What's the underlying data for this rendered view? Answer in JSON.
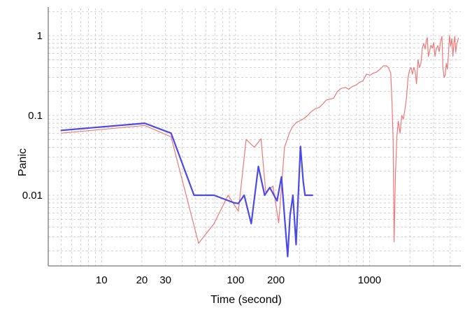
{
  "chart_data": {
    "type": "line",
    "title": "",
    "xlabel": "Time (second)",
    "ylabel": "Panic",
    "xscale": "log",
    "yscale": "log",
    "xlim": [
      4,
      4800
    ],
    "ylim": [
      0.0013,
      2.2
    ],
    "grid": true,
    "legend": "none",
    "x_ticks": [
      {
        "value": 10,
        "label": "10"
      },
      {
        "value": 20,
        "label": "20"
      },
      {
        "value": 30,
        "label": "30"
      },
      {
        "value": 100,
        "label": "100"
      },
      {
        "value": 200,
        "label": "200"
      },
      {
        "value": 1000,
        "label": "1000"
      }
    ],
    "y_ticks": [
      {
        "value": 0.01,
        "label": "0.01"
      },
      {
        "value": 0.1,
        "label": "0.1"
      },
      {
        "value": 1,
        "label": "1"
      }
    ],
    "series": [
      {
        "color": "#f07878",
        "width": 1.2,
        "points": [
          [
            5,
            0.06
          ],
          [
            21,
            0.075
          ],
          [
            33,
            0.054
          ],
          [
            53,
            0.0025
          ],
          [
            69,
            0.0044
          ],
          [
            88,
            0.01
          ],
          [
            105,
            0.0063
          ],
          [
            120,
            0.05
          ],
          [
            138,
            0.04
          ],
          [
            155,
            0.051
          ],
          [
            168,
            0.011
          ],
          [
            190,
            0.013
          ],
          [
            210,
            0.0045
          ],
          [
            232,
            0.04
          ],
          [
            252,
            0.06
          ],
          [
            265,
            0.072
          ],
          [
            285,
            0.082
          ],
          [
            307,
            0.087
          ],
          [
            325,
            0.092
          ],
          [
            345,
            0.1
          ],
          [
            368,
            0.112
          ],
          [
            395,
            0.122
          ],
          [
            420,
            0.126
          ],
          [
            445,
            0.138
          ],
          [
            475,
            0.156
          ],
          [
            505,
            0.16
          ],
          [
            540,
            0.165
          ],
          [
            575,
            0.2
          ],
          [
            615,
            0.218
          ],
          [
            660,
            0.225
          ],
          [
            700,
            0.213
          ],
          [
            740,
            0.23
          ],
          [
            790,
            0.24
          ],
          [
            840,
            0.26
          ],
          [
            890,
            0.27
          ],
          [
            950,
            0.33
          ],
          [
            1010,
            0.32
          ],
          [
            1070,
            0.34
          ],
          [
            1130,
            0.35
          ],
          [
            1200,
            0.38
          ],
          [
            1270,
            0.42
          ],
          [
            1330,
            0.42
          ],
          [
            1380,
            0.4
          ],
          [
            1440,
            0.34
          ],
          [
            1470,
            0.15
          ],
          [
            1500,
            0.05
          ],
          [
            1525,
            0.0026
          ],
          [
            1560,
            0.018
          ],
          [
            1600,
            0.055
          ],
          [
            1640,
            0.085
          ],
          [
            1690,
            0.06
          ],
          [
            1740,
            0.1
          ],
          [
            1790,
            0.09
          ],
          [
            1840,
            0.12
          ],
          [
            1890,
            0.17
          ],
          [
            1940,
            0.3
          ],
          [
            1990,
            0.37
          ],
          [
            2040,
            0.4
          ],
          [
            2090,
            0.33
          ],
          [
            2140,
            0.4
          ],
          [
            2190,
            0.36
          ],
          [
            2240,
            0.25
          ],
          [
            2300,
            0.5
          ],
          [
            2360,
            0.4
          ],
          [
            2420,
            0.45
          ],
          [
            2480,
            0.7
          ],
          [
            2540,
            0.8
          ],
          [
            2600,
            0.68
          ],
          [
            2650,
            0.86
          ],
          [
            2700,
            0.95
          ],
          [
            2750,
            0.55
          ],
          [
            2800,
            0.62
          ],
          [
            2870,
            0.76
          ],
          [
            2940,
            0.7
          ],
          [
            3010,
            0.82
          ],
          [
            3080,
            0.55
          ],
          [
            3150,
            0.68
          ],
          [
            3230,
            0.75
          ],
          [
            3310,
            0.63
          ],
          [
            3390,
            0.85
          ],
          [
            3470,
            0.98
          ],
          [
            3530,
            0.4
          ],
          [
            3600,
            0.3
          ],
          [
            3670,
            0.32
          ],
          [
            3740,
            0.45
          ],
          [
            3810,
            0.38
          ],
          [
            3880,
            0.58
          ],
          [
            3950,
            1.0
          ],
          [
            4030,
            0.74
          ],
          [
            4110,
            0.92
          ],
          [
            4190,
            0.55
          ],
          [
            4260,
            0.8
          ],
          [
            4330,
            0.98
          ],
          [
            4400,
            0.62
          ],
          [
            4470,
            0.78
          ],
          [
            4540,
            0.85
          ],
          [
            4600,
            0.93
          ]
        ]
      },
      {
        "color": "#4a4ae8",
        "width": 2.2,
        "points": [
          [
            5,
            0.065
          ],
          [
            21,
            0.08
          ],
          [
            33,
            0.06
          ],
          [
            49,
            0.01
          ],
          [
            69,
            0.01
          ],
          [
            98,
            0.008
          ],
          [
            105,
            0.0079
          ],
          [
            116,
            0.01
          ],
          [
            131,
            0.0044
          ],
          [
            148,
            0.023
          ],
          [
            165,
            0.01
          ],
          [
            180,
            0.0125
          ],
          [
            204,
            0.0085
          ],
          [
            220,
            0.017
          ],
          [
            245,
            0.0017
          ],
          [
            255,
            0.0056
          ],
          [
            268,
            0.01
          ],
          [
            283,
            0.0024
          ],
          [
            305,
            0.041
          ],
          [
            320,
            0.015
          ],
          [
            330,
            0.01
          ],
          [
            375,
            0.01
          ]
        ]
      }
    ]
  }
}
